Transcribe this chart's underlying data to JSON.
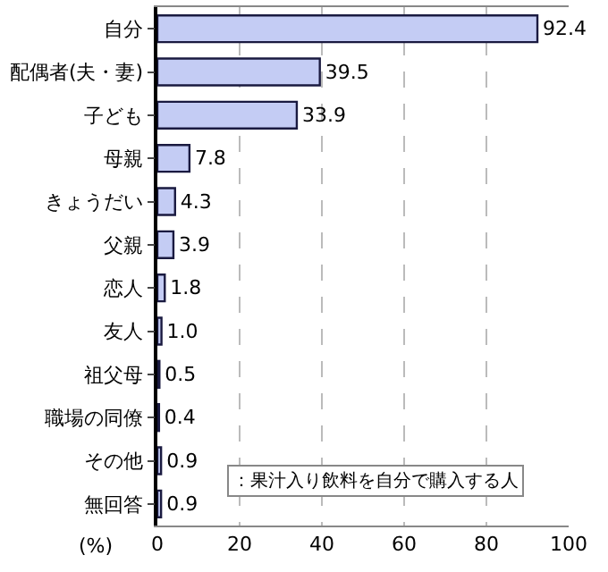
{
  "chart_data": {
    "type": "bar",
    "orientation": "horizontal",
    "xlabel": "(%)",
    "categories": [
      "自分",
      "配偶者(夫・妻)",
      "子ども",
      "母親",
      "きょうだい",
      "父親",
      "恋人",
      "友人",
      "祖父母",
      "職場の同僚",
      "その他",
      "無回答"
    ],
    "values": [
      92.4,
      39.5,
      33.9,
      7.8,
      4.3,
      3.9,
      1.8,
      1.0,
      0.5,
      0.4,
      0.9,
      0.9
    ],
    "color": "#c4ccf4",
    "value_labels": [
      "92.4",
      "39.5",
      "33.9",
      "7.8",
      "4.3",
      "3.9",
      "1.8",
      "1.0",
      "0.5",
      "0.4",
      "0.9",
      "0.9"
    ],
    "xlim": [
      0,
      100
    ],
    "xticks": [
      0,
      20,
      40,
      60,
      80,
      100
    ],
    "grid": "x",
    "annotations": [
      "：果汁入り飲料を自分で購入する人"
    ]
  }
}
